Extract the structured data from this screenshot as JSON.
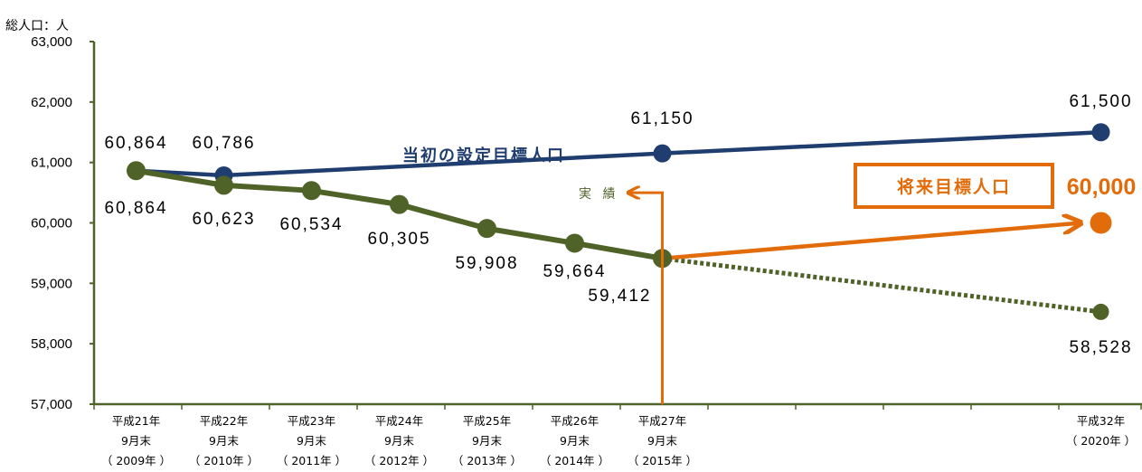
{
  "chart_data": {
    "type": "line",
    "unit_label": "総人口：人",
    "ylim": [
      57000,
      63000
    ],
    "y_ticks": [
      "63,000",
      "62,000",
      "61,000",
      "60,000",
      "59,000",
      "58,000",
      "57,000"
    ],
    "y_tick_values": [
      63000,
      62000,
      61000,
      60000,
      59000,
      58000,
      57000
    ],
    "x_categories": [
      {
        "line1": "平成21年",
        "line2": "9月末",
        "line3": "（ 2009年 ）"
      },
      {
        "line1": "平成22年",
        "line2": "9月末",
        "line3": "（ 2010年 ）"
      },
      {
        "line1": "平成23年",
        "line2": "9月末",
        "line3": "（ 2011年 ）"
      },
      {
        "line1": "平成24年",
        "line2": "9月末",
        "line3": "（ 2012年 ）"
      },
      {
        "line1": "平成25年",
        "line2": "9月末",
        "line3": "（ 2013年 ）"
      },
      {
        "line1": "平成26年",
        "line2": "9月末",
        "line3": "（ 2014年 ）"
      },
      {
        "line1": "平成27年",
        "line2": "9月末",
        "line3": "（ 2015年 ）"
      },
      {
        "line1": "",
        "line2": "",
        "line3": ""
      },
      {
        "line1": "",
        "line2": "",
        "line3": ""
      },
      {
        "line1": "",
        "line2": "",
        "line3": ""
      },
      {
        "line1": "",
        "line2": "",
        "line3": ""
      },
      {
        "line1": "平成32年",
        "line2": "",
        "line3": "（ 2020年 ）"
      }
    ],
    "series": [
      {
        "name": "当初の設定目標人口",
        "color": "#1F3D6E",
        "points": [
          {
            "x": 0,
            "y": 60864,
            "label": "60,864"
          },
          {
            "x": 1,
            "y": 60786,
            "label": "60,786"
          },
          {
            "x": 6,
            "y": 61150,
            "label": "61,150"
          },
          {
            "x": 11,
            "y": 61500,
            "label": "61,500"
          }
        ]
      },
      {
        "name": "実 績",
        "color": "#4F6228",
        "points": [
          {
            "x": 0,
            "y": 60864,
            "label": "60,864"
          },
          {
            "x": 1,
            "y": 60623,
            "label": "60,623"
          },
          {
            "x": 2,
            "y": 60534,
            "label": "60,534"
          },
          {
            "x": 3,
            "y": 60305,
            "label": "60,305"
          },
          {
            "x": 4,
            "y": 59908,
            "label": "59,908"
          },
          {
            "x": 5,
            "y": 59664,
            "label": "59,664"
          },
          {
            "x": 6,
            "y": 59412,
            "label": "59,412"
          }
        ]
      },
      {
        "name": "",
        "color": "#4F6228",
        "dashed": true,
        "points": [
          {
            "x": 6,
            "y": 59412
          },
          {
            "x": 11,
            "y": 58528,
            "label": "58,528"
          }
        ]
      },
      {
        "name": "将来目標人口",
        "color": "#E36C0A",
        "points": [
          {
            "x": 6,
            "y": 59412
          },
          {
            "x": 11,
            "y": 60000,
            "label": "60,000"
          }
        ]
      }
    ],
    "annotations": {
      "target_box_label": "将来目標人口",
      "target_value": "60,000",
      "actual_arrow_label": "実 績"
    }
  }
}
